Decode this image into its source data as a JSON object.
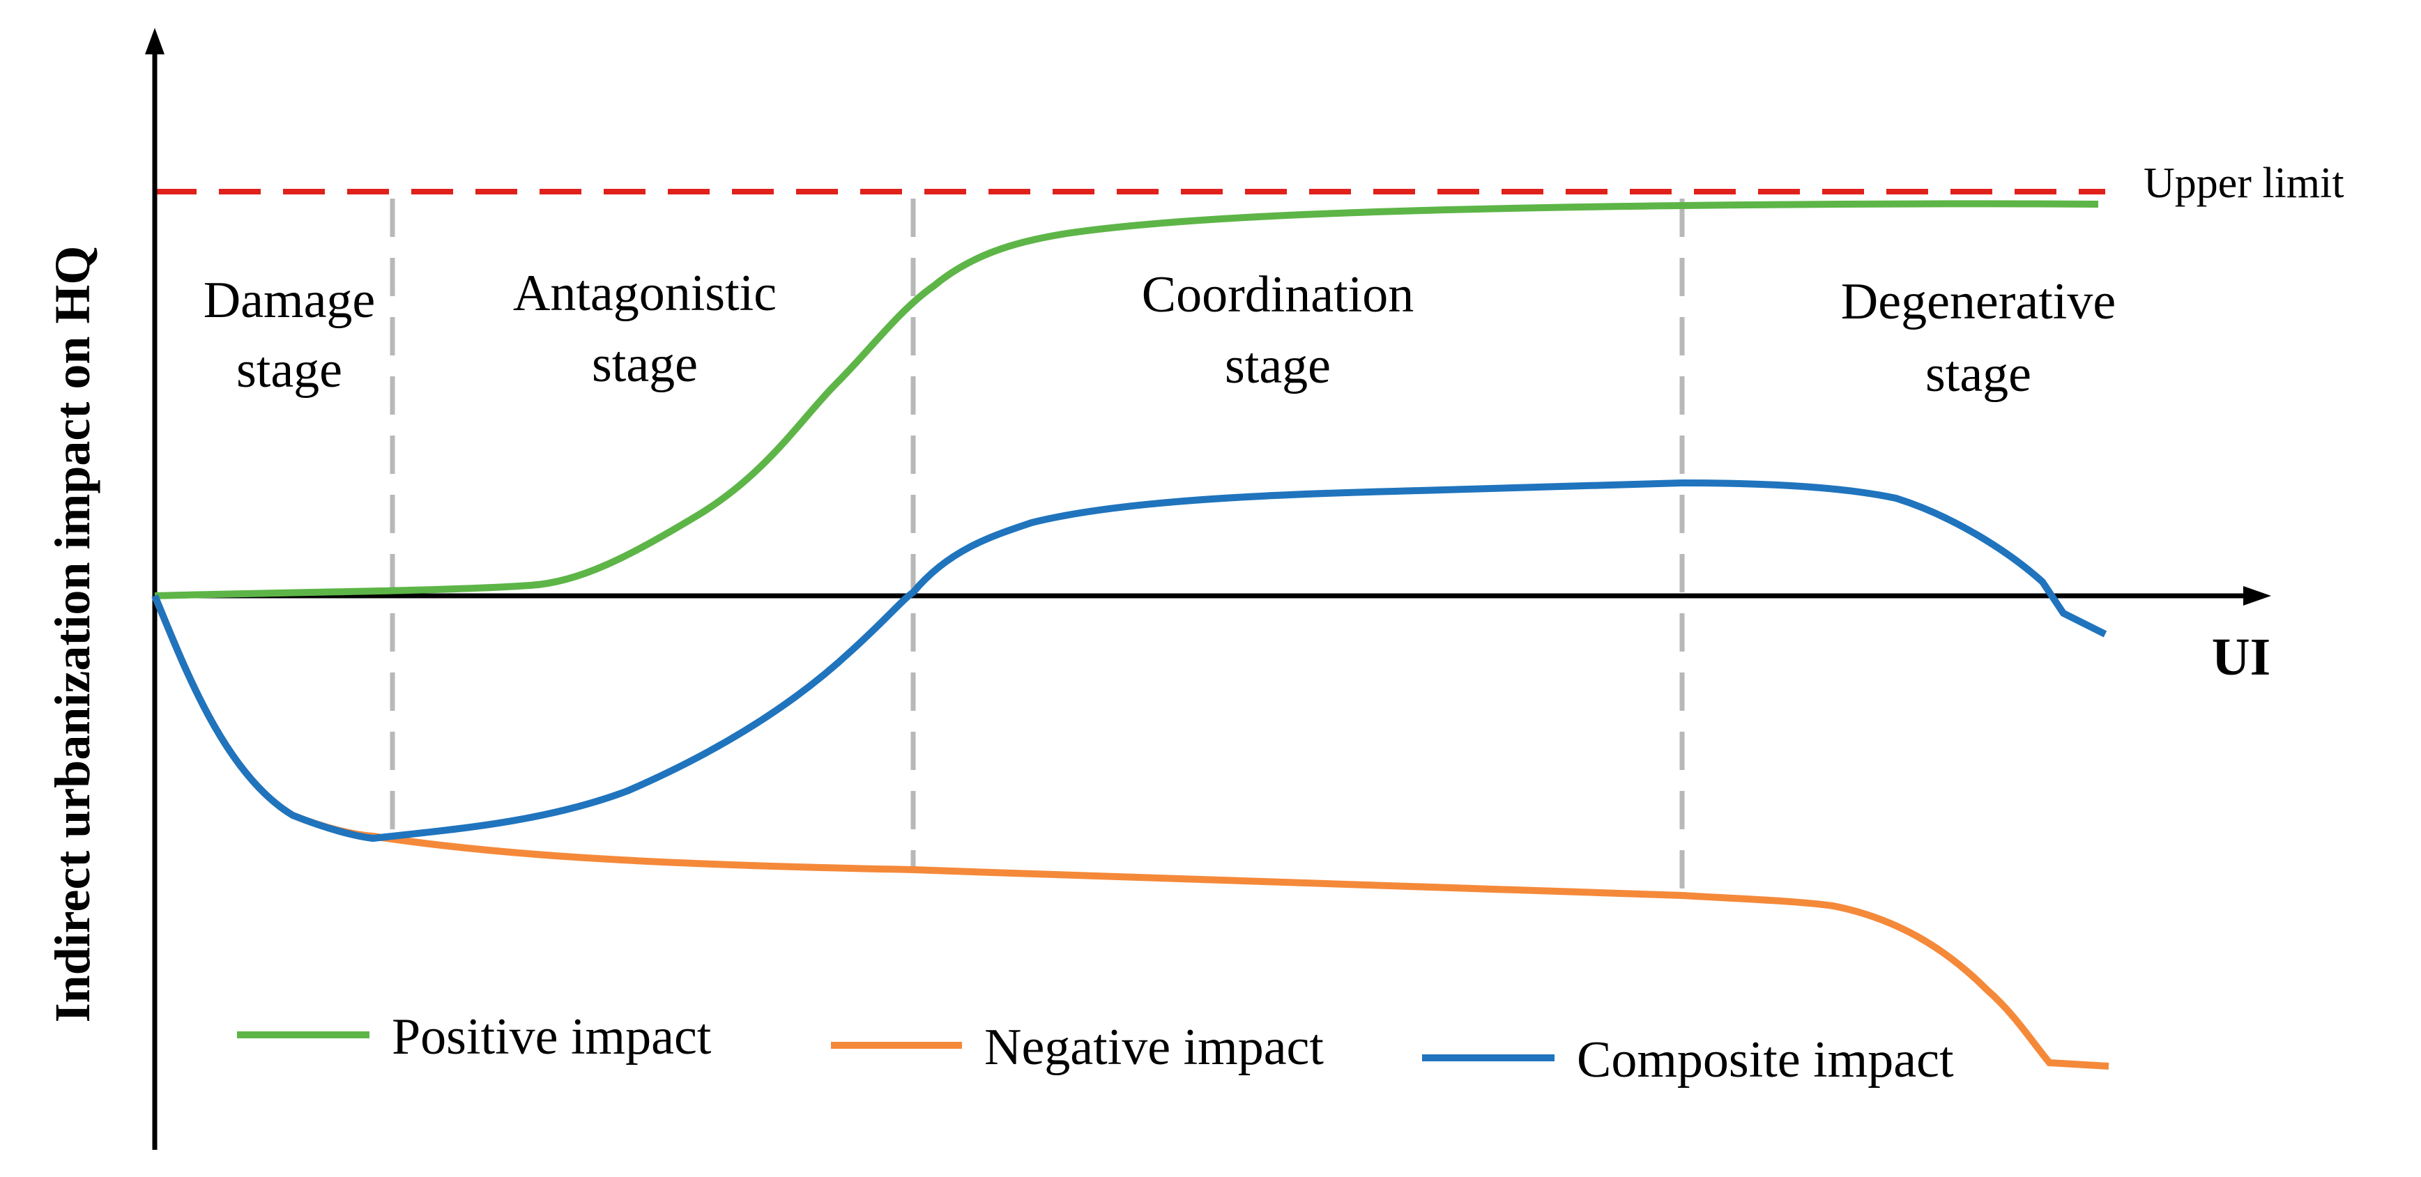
{
  "y_axis_label": "Indirect urbanization impact on HQ",
  "x_axis_label": "UI",
  "upper_limit_label": "Upper limit",
  "stages": [
    {
      "line1": "Damage",
      "line2": "stage"
    },
    {
      "line1": "Antagonistic",
      "line2": "stage"
    },
    {
      "line1": "Coordination",
      "line2": "stage"
    },
    {
      "line1": "Degenerative",
      "line2": "stage"
    }
  ],
  "legend": {
    "positive": "Positive impact",
    "negative": "Negative impact",
    "composite": "Composite impact"
  },
  "colors": {
    "positive": "#5db547",
    "negative": "#f5893a",
    "composite": "#1f74bd",
    "upper_limit": "#e0201b",
    "stage_divider": "#b8b8b8",
    "axis": "#000000"
  }
}
